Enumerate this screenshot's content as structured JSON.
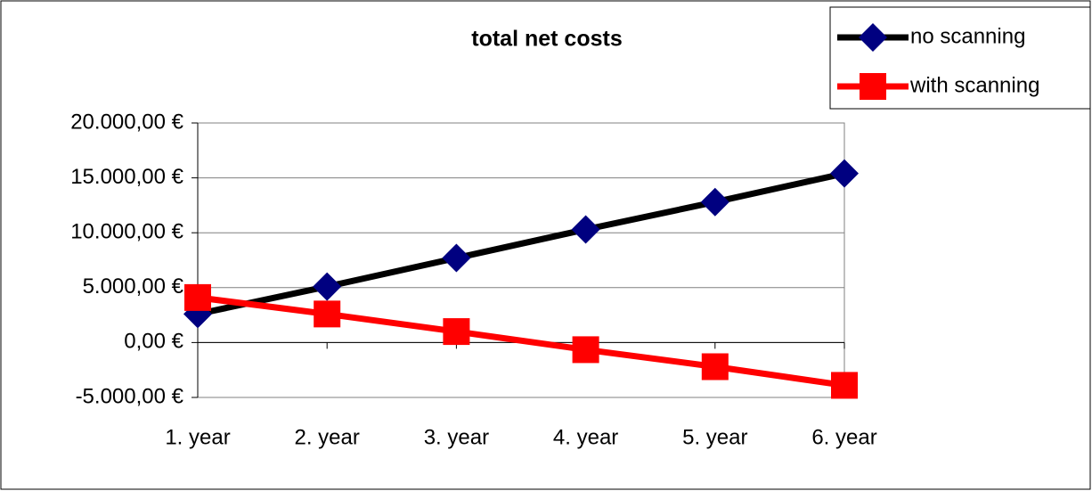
{
  "chart_data": {
    "type": "line",
    "title": "total net costs",
    "categories": [
      "1. year",
      "2. year",
      "3. year",
      "4. year",
      "5. year",
      "6. year"
    ],
    "series": [
      {
        "name": "no scanning",
        "color": "#000000",
        "marker_color": "#000080",
        "marker": "diamond",
        "values": [
          2600,
          5100,
          7700,
          10300,
          12800,
          15400
        ]
      },
      {
        "name": "with scanning",
        "color": "#ff0000",
        "marker_color": "#ff0000",
        "marker": "square",
        "values": [
          4100,
          2600,
          1000,
          -650,
          -2200,
          -3900
        ]
      }
    ],
    "ylim": [
      -5000,
      20000
    ],
    "yticks": [
      {
        "value": -5000,
        "label": "-5.000,00 €"
      },
      {
        "value": 0,
        "label": "0,00 €"
      },
      {
        "value": 5000,
        "label": "5.000,00 €"
      },
      {
        "value": 10000,
        "label": "10.000,00 €"
      },
      {
        "value": 15000,
        "label": "15.000,00 €"
      },
      {
        "value": 20000,
        "label": "20.000,00 €"
      }
    ],
    "grid": true,
    "legend": "top-right"
  }
}
